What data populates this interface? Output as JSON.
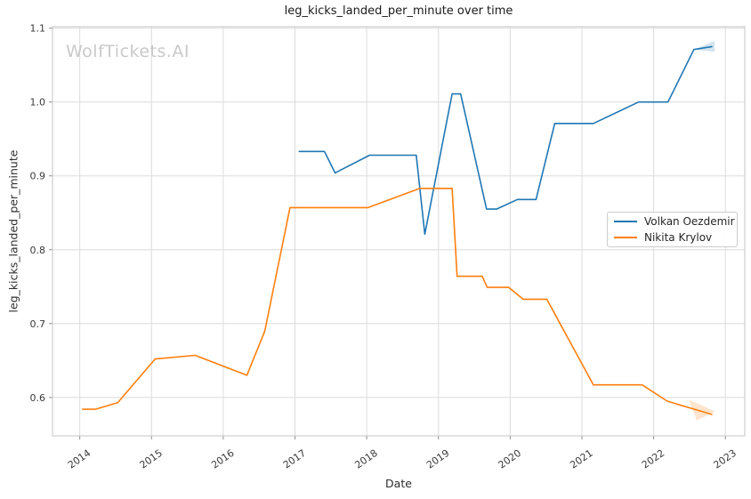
{
  "chart_data": {
    "type": "line",
    "title": "leg_kicks_landed_per_minute over time",
    "xlabel": "Date",
    "ylabel": "leg_kicks_landed_per_minute",
    "watermark": "WolfTickets.AI",
    "grid": true,
    "legend_position": "center right",
    "xlim": [
      2013.62,
      2023.27
    ],
    "ylim": [
      0.548,
      1.102
    ],
    "xticks": [
      2014,
      2015,
      2016,
      2017,
      2018,
      2019,
      2020,
      2021,
      2022,
      2023
    ],
    "xticklabels": [
      "2014",
      "2015",
      "2016",
      "2017",
      "2018",
      "2019",
      "2020",
      "2021",
      "2022",
      "2023"
    ],
    "yticks": [
      0.6,
      0.7,
      0.8,
      0.9,
      1.0,
      1.1
    ],
    "yticklabels": [
      "0.6",
      "0.7",
      "0.8",
      "0.9",
      "1.0",
      "1.1"
    ],
    "colors": {
      "grid": "#dcdcdc",
      "spine": "#c5c5c5",
      "tick": "#8f8f8f"
    },
    "series": [
      {
        "id": "volkan-oezdemir",
        "name": "Volkan Oezdemir",
        "color": "#1f77b4",
        "points": [
          [
            2017.06,
            0.933
          ],
          [
            2017.41,
            0.933
          ],
          [
            2017.56,
            0.904
          ],
          [
            2018.04,
            0.928
          ],
          [
            2018.69,
            0.928
          ],
          [
            2018.81,
            0.821
          ],
          [
            2019.19,
            1.011
          ],
          [
            2019.31,
            1.011
          ],
          [
            2019.67,
            0.855
          ],
          [
            2019.81,
            0.855
          ],
          [
            2020.1,
            0.868
          ],
          [
            2020.36,
            0.868
          ],
          [
            2020.62,
            0.971
          ],
          [
            2021.16,
            0.971
          ],
          [
            2021.79,
            1.0
          ],
          [
            2022.2,
            1.0
          ],
          [
            2022.56,
            1.071
          ],
          [
            2022.81,
            1.075
          ]
        ],
        "band": [
          [
            2022.56,
            1.071
          ],
          [
            2022.85,
            1.083
          ],
          [
            2022.85,
            1.068
          ]
        ]
      },
      {
        "id": "nikita-krylov",
        "name": "Nikita Krylov",
        "color": "#ff7f0e",
        "points": [
          [
            2014.04,
            0.584
          ],
          [
            2014.22,
            0.584
          ],
          [
            2014.53,
            0.593
          ],
          [
            2015.05,
            0.652
          ],
          [
            2015.61,
            0.657
          ],
          [
            2016.33,
            0.63
          ],
          [
            2016.58,
            0.69
          ],
          [
            2016.93,
            0.857
          ],
          [
            2018.02,
            0.857
          ],
          [
            2018.74,
            0.883
          ],
          [
            2019.19,
            0.883
          ],
          [
            2019.26,
            0.764
          ],
          [
            2019.61,
            0.764
          ],
          [
            2019.68,
            0.749
          ],
          [
            2019.98,
            0.749
          ],
          [
            2020.18,
            0.733
          ],
          [
            2020.51,
            0.733
          ],
          [
            2021.16,
            0.617
          ],
          [
            2021.84,
            0.617
          ],
          [
            2022.19,
            0.595
          ],
          [
            2022.81,
            0.577
          ]
        ],
        "band": [
          [
            2022.49,
            0.597
          ],
          [
            2022.86,
            0.581
          ],
          [
            2022.6,
            0.569
          ]
        ]
      }
    ]
  }
}
